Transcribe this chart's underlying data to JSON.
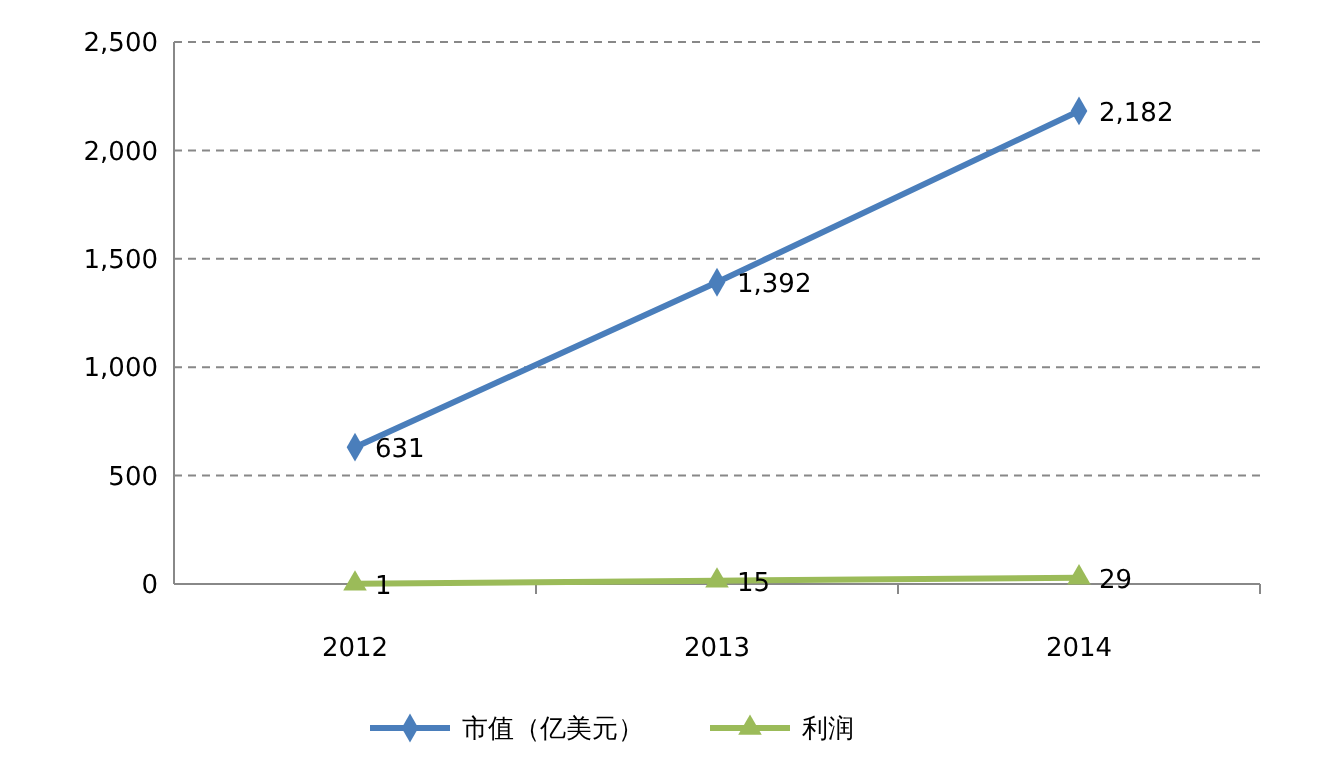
{
  "chart_data": {
    "type": "line",
    "categories": [
      "2012",
      "2013",
      "2014"
    ],
    "series": [
      {
        "name": "市值（亿美元）",
        "color": "#4a7ebb",
        "values": [
          631,
          1392,
          2182
        ],
        "marker": "diamond",
        "value_labels": [
          "631",
          "1,392",
          "2,182"
        ]
      },
      {
        "name": "利润",
        "color": "#9bbb59",
        "values": [
          1,
          15,
          29
        ],
        "marker": "triangle",
        "value_labels": [
          "1",
          "15",
          "29"
        ]
      }
    ],
    "ylim": [
      0,
      2500
    ],
    "yticks": [
      0,
      500,
      {
        "value": 1000,
        "label": "1,000"
      },
      {
        "value": 1500,
        "label": "1,500"
      },
      {
        "value": 2000,
        "label": "2,000"
      },
      {
        "value": 2500,
        "label": "2,500"
      }
    ],
    "grid": "y",
    "legend": "bottom",
    "line_style": "solid"
  }
}
